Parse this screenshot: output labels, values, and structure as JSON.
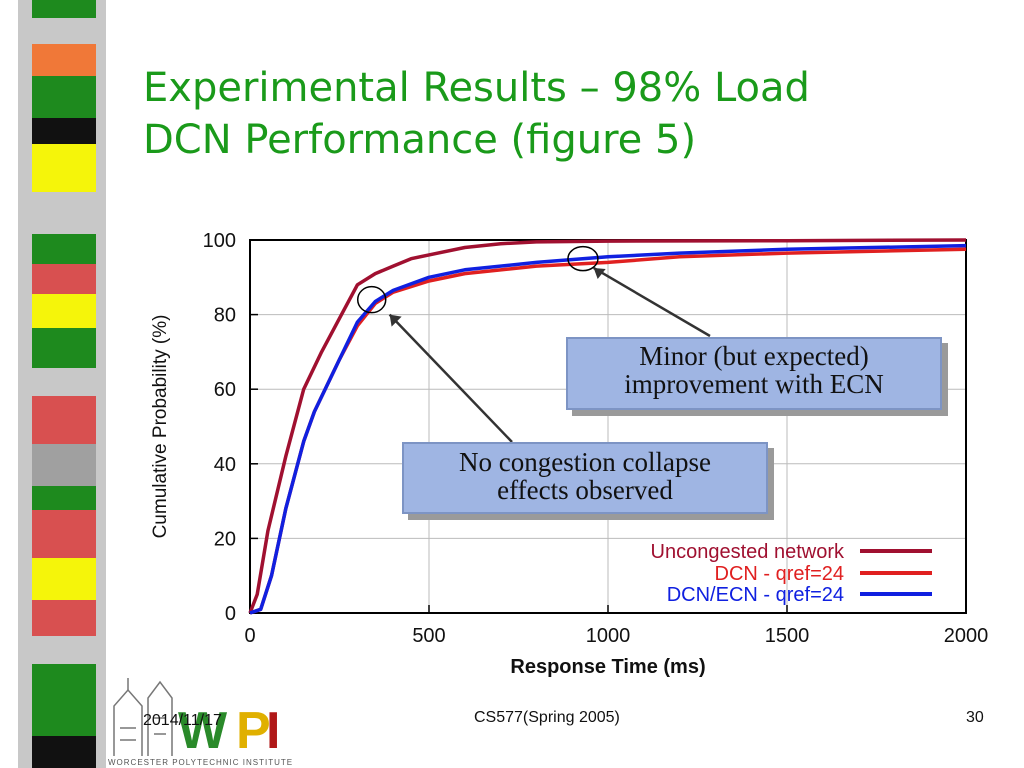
{
  "slide": {
    "title_line1": "Experimental Results – 98% Load",
    "title_line2": "DCN Performance (figure 5)",
    "callout_minor_line1": "Minor (but expected)",
    "callout_minor_line2": "improvement with ECN",
    "callout_no_line1": "No congestion collapse",
    "callout_no_line2": "effects observed"
  },
  "footer": {
    "date": "2014/11/17",
    "course": "CS577(Spring 2005)",
    "page": "30",
    "logo_text": "WPI",
    "logo_subtext": "WORCESTER POLYTECHNIC INSTITUTE"
  },
  "colors": {
    "title": "#1a9a1a",
    "callout_fill": "#9fb5e3"
  },
  "chart_data": {
    "type": "line",
    "xlabel": "Response Time (ms)",
    "ylabel": "Cumulative Probability (%)",
    "xlim": [
      0,
      2000
    ],
    "ylim": [
      0,
      100
    ],
    "xticks": [
      0,
      500,
      1000,
      1500,
      2000
    ],
    "yticks": [
      0,
      20,
      40,
      60,
      80,
      100
    ],
    "grid": true,
    "legend_position": "bottom-right",
    "series": [
      {
        "name": "Uncongested network",
        "color": "#a01030",
        "x": [
          0,
          20,
          50,
          100,
          150,
          200,
          250,
          300,
          350,
          400,
          450,
          500,
          600,
          700,
          800,
          1000,
          1500,
          2000
        ],
        "y": [
          0,
          5,
          22,
          42,
          60,
          70,
          79,
          88,
          91,
          93,
          95,
          96,
          98,
          99,
          99.5,
          99.7,
          99.8,
          100
        ]
      },
      {
        "name": "DCN - qref=24",
        "color": "#e02020",
        "x": [
          0,
          30,
          60,
          100,
          150,
          180,
          250,
          300,
          350,
          400,
          500,
          600,
          800,
          1000,
          1200,
          1500,
          2000
        ],
        "y": [
          0,
          1,
          10,
          28,
          46,
          54,
          68,
          77,
          83,
          86,
          89,
          91,
          93,
          94,
          95.5,
          96.5,
          97.5
        ]
      },
      {
        "name": "DCN/ECN - qref=24",
        "color": "#1020e0",
        "x": [
          0,
          30,
          60,
          100,
          150,
          180,
          250,
          300,
          350,
          400,
          500,
          600,
          800,
          1000,
          1200,
          1500,
          2000
        ],
        "y": [
          0,
          1,
          10,
          28,
          46,
          54,
          68,
          78,
          83.5,
          86.5,
          90,
          92,
          94,
          95.5,
          96.5,
          97.5,
          98.5
        ]
      }
    ]
  }
}
